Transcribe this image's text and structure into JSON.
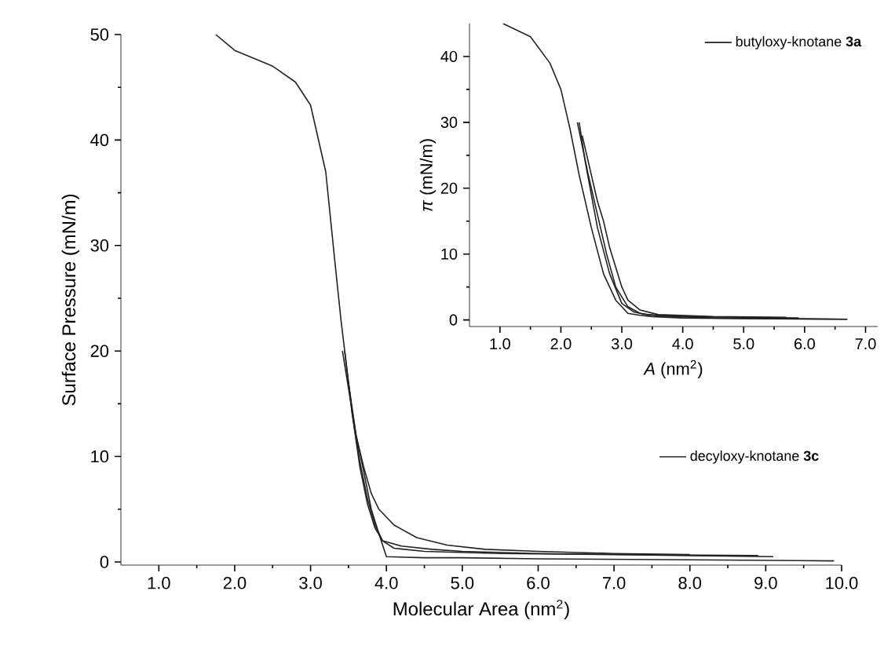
{
  "chart_data": [
    {
      "type": "line",
      "xlabel": "Molecular Area (nm$^{2}$)",
      "ylabel": "Surface Pressure (mN/m)",
      "xlim": [
        0.5,
        10.0
      ],
      "ylim": [
        -0.3,
        50
      ],
      "xticks": [
        {
          "value": 1,
          "label": "1.0"
        },
        {
          "value": 2,
          "label": "2.0"
        },
        {
          "value": 3,
          "label": "3.0"
        },
        {
          "value": 4,
          "label": "4.0"
        },
        {
          "value": 5,
          "label": "5.0"
        },
        {
          "value": 6,
          "label": "6.0"
        },
        {
          "value": 7,
          "label": "7.0"
        },
        {
          "value": 8,
          "label": "8.0"
        },
        {
          "value": 9,
          "label": "9.0"
        },
        {
          "value": 10,
          "label": "10.0"
        }
      ],
      "yticks": [
        0,
        10,
        20,
        30,
        40,
        50
      ],
      "legend": "bottom right",
      "series": [
        {
          "name": "decyloxy-knotane **3c**",
          "color": "#222222",
          "x": [
            9.9,
            8.0,
            6.0,
            5.0,
            4.5,
            4.0,
            3.9,
            3.8,
            3.7,
            3.6,
            3.5,
            3.4,
            3.32,
            3.2,
            3.0,
            2.8,
            2.5,
            2.0,
            1.75
          ],
          "values": [
            0.1,
            0.2,
            0.3,
            0.4,
            0.4,
            0.5,
            2.7,
            5,
            8.6,
            12,
            17,
            23,
            28.5,
            37,
            43.3,
            45.5,
            47,
            48.5,
            50
          ]
        },
        {
          "color": "#222222",
          "x": [
            3.45,
            3.55,
            3.65,
            3.75,
            3.85,
            3.95,
            4.2,
            4.6,
            5.0,
            6.0,
            7.0,
            8.0,
            9.1
          ],
          "values": [
            20,
            14,
            9,
            5.5,
            3.2,
            2.0,
            1.5,
            1.2,
            1.0,
            0.8,
            0.7,
            0.6,
            0.5
          ]
        },
        {
          "color": "#222222",
          "x": [
            8.9,
            7.0,
            5.5,
            4.5,
            4.1,
            3.95,
            3.85,
            3.75,
            3.65,
            3.55,
            3.5
          ],
          "values": [
            0.6,
            0.7,
            0.8,
            1.0,
            1.3,
            2.0,
            3.5,
            6,
            9.5,
            14,
            17
          ]
        },
        {
          "color": "#222222",
          "x": [
            3.42,
            3.6,
            3.7,
            3.8,
            3.9,
            4.1,
            4.4,
            4.8,
            5.3,
            6.0,
            7.0,
            8.0
          ],
          "values": [
            20,
            12,
            9,
            6.5,
            5,
            3.5,
            2.3,
            1.6,
            1.2,
            1.0,
            0.8,
            0.7
          ]
        }
      ]
    },
    {
      "type": "line",
      "xlabel": "*A* (nm$^{2}$)",
      "ylabel": "*π* (mN/m)",
      "xlim": [
        0.5,
        7.2
      ],
      "ylim": [
        -1,
        45
      ],
      "xticks": [
        {
          "value": 1,
          "label": "1.0"
        },
        {
          "value": 2,
          "label": "2.0"
        },
        {
          "value": 3,
          "label": "3.0"
        },
        {
          "value": 4,
          "label": "4.0"
        },
        {
          "value": 5,
          "label": "5.0"
        },
        {
          "value": 6,
          "label": "6.0"
        },
        {
          "value": 7,
          "label": "7.0"
        }
      ],
      "yticks": [
        0,
        10,
        20,
        30,
        40
      ],
      "legend": "top right",
      "series": [
        {
          "name": "butyloxy-knotane **3a**",
          "color": "#222222",
          "x": [
            6.7,
            5.0,
            4.0,
            3.5,
            3.3,
            3.1,
            2.9,
            2.7,
            2.5,
            2.3,
            2.15,
            2.0,
            1.82,
            1.5,
            1.05
          ],
          "values": [
            0.1,
            0.2,
            0.3,
            0.5,
            0.7,
            1,
            3,
            7,
            14,
            22,
            29,
            35,
            39,
            43,
            45
          ]
        },
        {
          "color": "#222222",
          "x": [
            2.3,
            2.4,
            2.5,
            2.6,
            2.8,
            3.0,
            3.2,
            3.4,
            4.0,
            5.0,
            5.9
          ],
          "values": [
            30,
            24,
            19,
            14,
            7,
            2.5,
            1.2,
            0.8,
            0.5,
            0.4,
            0.3
          ]
        },
        {
          "color": "#222222",
          "x": [
            5.7,
            4.5,
            3.6,
            3.3,
            3.1,
            3.0,
            2.9,
            2.8,
            2.7,
            2.6,
            2.5,
            2.4,
            2.35
          ],
          "values": [
            0.4,
            0.5,
            0.8,
            1.5,
            3,
            5,
            8,
            11,
            15,
            18,
            22,
            26,
            28
          ]
        },
        {
          "color": "#222222",
          "x": [
            2.27,
            2.45,
            2.6,
            2.75,
            2.9,
            3.1,
            3.3,
            3.6,
            4.5,
            6.7
          ],
          "values": [
            30,
            22,
            16,
            10,
            5,
            2,
            1,
            0.6,
            0.3,
            0.1
          ]
        }
      ]
    }
  ]
}
